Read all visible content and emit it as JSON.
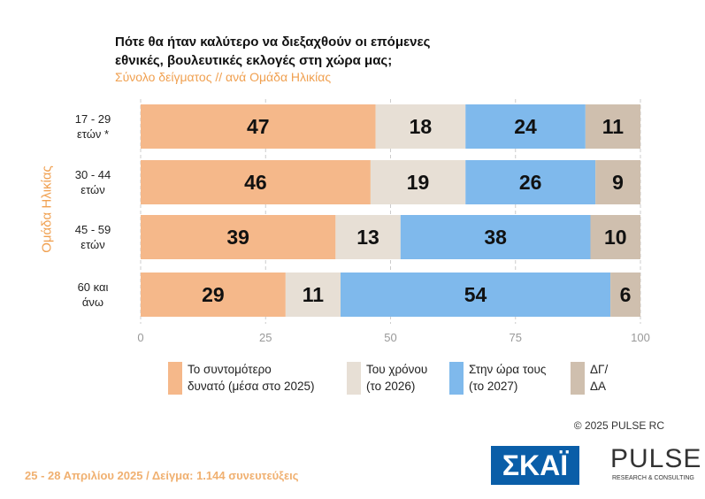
{
  "chart_data": {
    "type": "stacked-bar-horizontal",
    "title": "Πότε θα ήταν καλύτερο να διεξαχθούν οι επόμενες\nεθνικές, βουλευτικές εκλογές στη χώρα μας;",
    "subtitle": "Σύνολο δείγματος // ανά Ομάδα Ηλικίας",
    "y_label": "Ομάδα Ηλικίας",
    "categories": [
      "17 - 29\nετών *",
      "30 - 44\nετών",
      "45 - 59\nετών",
      "60 και\nάνω"
    ],
    "series": [
      {
        "name": "Το συντομότερο\nδυνατό (μέσα στο 2025)",
        "color": "#f5b88a",
        "values": [
          47,
          46,
          39,
          29
        ]
      },
      {
        "name": "Του χρόνου\n(το 2026)",
        "color": "#e7dfd5",
        "values": [
          18,
          19,
          13,
          11
        ]
      },
      {
        "name": "Στην ώρα τους\n(το 2027)",
        "color": "#7fb9ec",
        "values": [
          24,
          26,
          38,
          54
        ]
      },
      {
        "name": "ΔΓ/\nΔΑ",
        "color": "#cfbfae",
        "values": [
          11,
          9,
          10,
          6
        ]
      }
    ],
    "xlim": [
      0,
      100
    ],
    "xticks": [
      0,
      25,
      50,
      75,
      100
    ],
    "grid": true,
    "copyright": "©  2025  PULSE RC",
    "footer": "25 - 28 Απριλίου 2025  /  Δείγμα:  1.144 συνευτεύξεις",
    "logos": [
      "ΣΚΑΪ",
      "PULSE",
      "RESEARCH & CONSULTING"
    ]
  }
}
